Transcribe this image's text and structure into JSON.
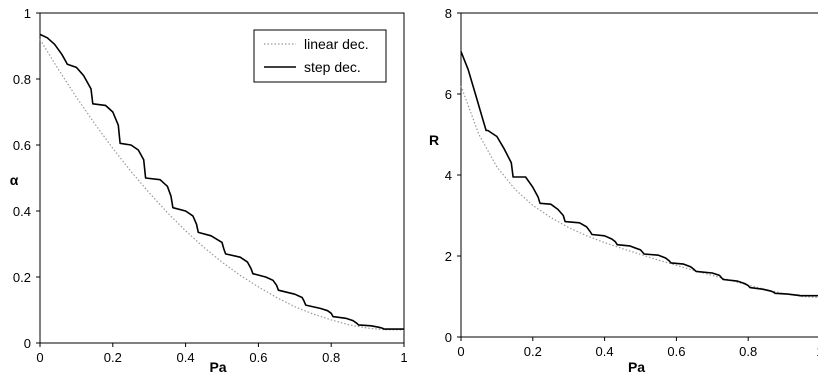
{
  "chart_data": [
    {
      "type": "line",
      "title": "",
      "xlabel": "Pa",
      "ylabel": "α",
      "xlim": [
        0,
        1
      ],
      "ylim": [
        0,
        1
      ],
      "x_ticks": [
        "0",
        "0.2",
        "0.4",
        "0.6",
        "0.8",
        "1"
      ],
      "y_ticks": [
        "0",
        "0.2",
        "0.4",
        "0.6",
        "0.8",
        "1"
      ],
      "grid": false,
      "legend": {
        "placement": "top-right",
        "entries": [
          "linear dec.",
          "step dec."
        ]
      },
      "series": [
        {
          "name": "linear dec.",
          "style": "dotted",
          "color": "#999999",
          "x": [
            0,
            0.05,
            0.1,
            0.15,
            0.2,
            0.25,
            0.3,
            0.35,
            0.4,
            0.45,
            0.5,
            0.55,
            0.6,
            0.65,
            0.7,
            0.75,
            0.8,
            0.85,
            0.9,
            0.95,
            1.0
          ],
          "y": [
            0.92,
            0.83,
            0.745,
            0.665,
            0.59,
            0.52,
            0.455,
            0.395,
            0.34,
            0.29,
            0.245,
            0.205,
            0.17,
            0.138,
            0.11,
            0.088,
            0.07,
            0.055,
            0.045,
            0.04,
            0.04
          ]
        },
        {
          "name": "step dec.",
          "style": "solid",
          "color": "#000000",
          "x": [
            0,
            0.02,
            0.04,
            0.06,
            0.07,
            0.075,
            0.1,
            0.12,
            0.14,
            0.145,
            0.18,
            0.2,
            0.215,
            0.22,
            0.25,
            0.27,
            0.285,
            0.29,
            0.33,
            0.35,
            0.36,
            0.365,
            0.4,
            0.42,
            0.43,
            0.435,
            0.47,
            0.5,
            0.505,
            0.51,
            0.55,
            0.57,
            0.58,
            0.585,
            0.62,
            0.64,
            0.65,
            0.655,
            0.7,
            0.72,
            0.725,
            0.73,
            0.77,
            0.79,
            0.8,
            0.805,
            0.84,
            0.86,
            0.87,
            0.875,
            0.91,
            0.93,
            0.94,
            0.945,
            1.0
          ],
          "y": [
            0.935,
            0.925,
            0.905,
            0.875,
            0.855,
            0.845,
            0.835,
            0.81,
            0.77,
            0.725,
            0.72,
            0.7,
            0.66,
            0.605,
            0.6,
            0.585,
            0.555,
            0.5,
            0.495,
            0.475,
            0.445,
            0.41,
            0.4,
            0.385,
            0.36,
            0.335,
            0.325,
            0.305,
            0.285,
            0.27,
            0.26,
            0.245,
            0.225,
            0.21,
            0.2,
            0.19,
            0.175,
            0.16,
            0.148,
            0.138,
            0.128,
            0.115,
            0.105,
            0.098,
            0.09,
            0.08,
            0.075,
            0.068,
            0.06,
            0.055,
            0.052,
            0.048,
            0.045,
            0.042,
            0.042
          ]
        }
      ]
    },
    {
      "type": "line",
      "title": "",
      "xlabel": "Pa",
      "ylabel": "R",
      "xlim": [
        0,
        1
      ],
      "ylim": [
        0,
        8
      ],
      "x_ticks": [
        "0",
        "0.2",
        "0.4",
        "0.6",
        "0.8",
        "1"
      ],
      "y_ticks": [
        "0",
        "2",
        "4",
        "6",
        "8"
      ],
      "grid": false,
      "series": [
        {
          "name": "linear dec.",
          "style": "dotted",
          "color": "#999999",
          "x": [
            0,
            0.05,
            0.1,
            0.15,
            0.2,
            0.25,
            0.3,
            0.35,
            0.4,
            0.45,
            0.5,
            0.55,
            0.6,
            0.65,
            0.7,
            0.75,
            0.8,
            0.85,
            0.9,
            0.95,
            1.0
          ],
          "y": [
            6.2,
            5.0,
            4.2,
            3.65,
            3.25,
            2.95,
            2.7,
            2.5,
            2.33,
            2.18,
            2.04,
            1.9,
            1.77,
            1.64,
            1.52,
            1.4,
            1.28,
            1.17,
            1.07,
            1.0,
            0.97
          ]
        },
        {
          "name": "step dec.",
          "style": "solid",
          "color": "#000000",
          "x": [
            0,
            0.02,
            0.04,
            0.06,
            0.07,
            0.075,
            0.1,
            0.12,
            0.14,
            0.145,
            0.18,
            0.2,
            0.215,
            0.22,
            0.25,
            0.27,
            0.285,
            0.29,
            0.33,
            0.35,
            0.36,
            0.365,
            0.4,
            0.42,
            0.43,
            0.435,
            0.47,
            0.5,
            0.505,
            0.51,
            0.55,
            0.57,
            0.58,
            0.585,
            0.62,
            0.64,
            0.65,
            0.655,
            0.7,
            0.72,
            0.725,
            0.73,
            0.77,
            0.79,
            0.8,
            0.805,
            0.84,
            0.86,
            0.87,
            0.875,
            0.91,
            0.93,
            0.94,
            0.945,
            1.0
          ],
          "y": [
            7.05,
            6.6,
            6.0,
            5.4,
            5.1,
            5.1,
            4.95,
            4.65,
            4.3,
            3.95,
            3.95,
            3.7,
            3.45,
            3.3,
            3.28,
            3.15,
            3.0,
            2.85,
            2.82,
            2.72,
            2.6,
            2.53,
            2.5,
            2.42,
            2.35,
            2.28,
            2.25,
            2.15,
            2.1,
            2.05,
            2.02,
            1.95,
            1.88,
            1.83,
            1.8,
            1.73,
            1.66,
            1.62,
            1.58,
            1.52,
            1.47,
            1.42,
            1.38,
            1.32,
            1.27,
            1.22,
            1.18,
            1.14,
            1.11,
            1.08,
            1.06,
            1.04,
            1.03,
            1.02,
            1.02
          ]
        }
      ]
    }
  ]
}
